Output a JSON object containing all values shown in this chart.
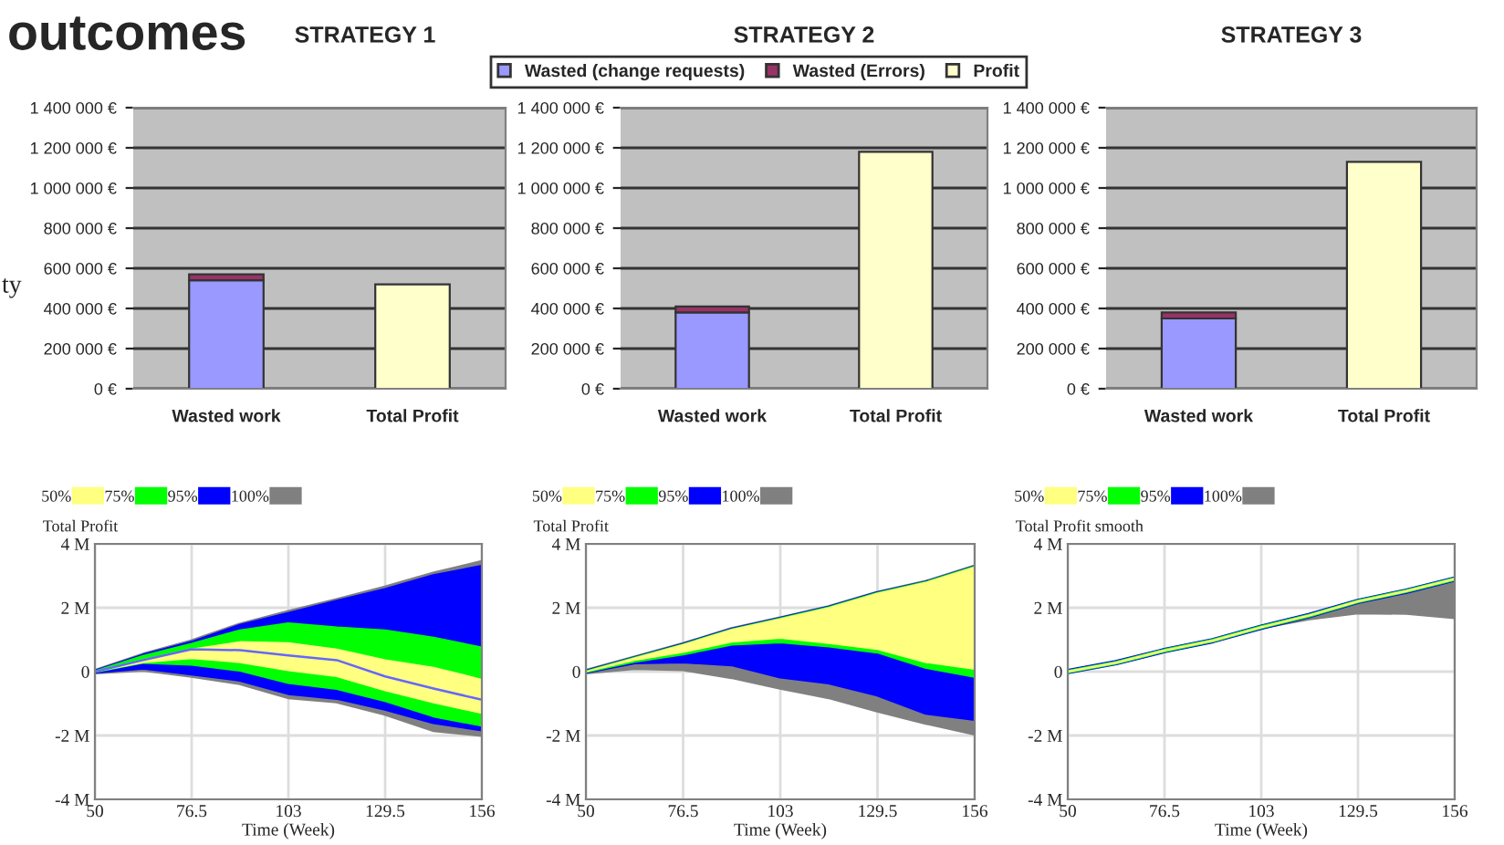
{
  "chart_data": [
    {
      "type": "bar",
      "stacked": true,
      "title": "STRATEGY 1",
      "categories": [
        "Wasted work",
        "Total Profit"
      ],
      "ylim": [
        0,
        1400000
      ],
      "yticks": [
        {
          "value": 0,
          "label": "0 €"
        },
        {
          "value": 200000,
          "label": "200 000 €"
        },
        {
          "value": 400000,
          "label": "400 000 €"
        },
        {
          "value": 600000,
          "label": "600 000 €"
        },
        {
          "value": 800000,
          "label": "800 000 €"
        },
        {
          "value": 1000000,
          "label": "1 000 000 €"
        },
        {
          "value": 1200000,
          "label": "1 200 000 €"
        },
        {
          "value": 1400000,
          "label": "1 400 000 €"
        }
      ],
      "grid": "y",
      "legend": "top right",
      "annotations": [
        "outcomes",
        "ty"
      ],
      "series": [
        {
          "name": "Wasted (change requests)",
          "color": "#9999ff",
          "values": [
            540000,
            null
          ]
        },
        {
          "name": "Wasted (Errors)",
          "color": "#993366",
          "values": [
            30000,
            null
          ]
        },
        {
          "name": "Profit",
          "color": "#ffffcc",
          "values": [
            null,
            520000
          ]
        }
      ]
    },
    {
      "type": "bar",
      "stacked": true,
      "title": "STRATEGY 2",
      "categories": [
        "Wasted work",
        "Total Profit"
      ],
      "ylim": [
        0,
        1400000
      ],
      "yticks": [
        {
          "value": 0,
          "label": "0 €"
        },
        {
          "value": 200000,
          "label": "200 000 €"
        },
        {
          "value": 400000,
          "label": "400 000 €"
        },
        {
          "value": 600000,
          "label": "600 000 €"
        },
        {
          "value": 800000,
          "label": "800 000 €"
        },
        {
          "value": 1000000,
          "label": "1 000 000 €"
        },
        {
          "value": 1200000,
          "label": "1 200 000 €"
        },
        {
          "value": 1400000,
          "label": "1 400 000 €"
        }
      ],
      "grid": "y",
      "series": [
        {
          "color": "#9999ff",
          "values": [
            380000,
            null
          ]
        },
        {
          "color": "#993366",
          "values": [
            30000,
            null
          ]
        },
        {
          "color": "#ffffcc",
          "values": [
            null,
            1180000
          ]
        }
      ]
    },
    {
      "type": "bar",
      "stacked": true,
      "title": "STRATEGY 3",
      "categories": [
        "Wasted work",
        "Total Profit"
      ],
      "ylim": [
        0,
        1400000
      ],
      "yticks": [
        {
          "value": 0,
          "label": "0 €"
        },
        {
          "value": 200000,
          "label": "200 000 €"
        },
        {
          "value": 400000,
          "label": "400 000 €"
        },
        {
          "value": 600000,
          "label": "600 000 €"
        },
        {
          "value": 800000,
          "label": "800 000 €"
        },
        {
          "value": 1000000,
          "label": "1 000 000 €"
        },
        {
          "value": 1200000,
          "label": "1 200 000 €"
        },
        {
          "value": 1400000,
          "label": "1 400 000 €"
        }
      ],
      "grid": "y",
      "series": [
        {
          "color": "#9999ff",
          "values": [
            350000,
            null
          ]
        },
        {
          "color": "#993366",
          "values": [
            30000,
            null
          ]
        },
        {
          "color": "#ffffcc",
          "values": [
            null,
            1130000
          ]
        }
      ]
    },
    {
      "type": "line",
      "ylabel": "Total Profit",
      "xlabel": "Time (Week)",
      "x": [
        50,
        63.25,
        76.5,
        89.75,
        103,
        116.25,
        129.5,
        142.75,
        156
      ],
      "xlim": [
        50,
        156
      ],
      "xticks": [
        50,
        76.5,
        103,
        129.5,
        156
      ],
      "ylim": [
        -4,
        4
      ],
      "yticks": [
        {
          "value": -4,
          "label": "-4 M"
        },
        {
          "value": -2,
          "label": "-2 M"
        },
        {
          "value": 0,
          "label": "0"
        },
        {
          "value": 2,
          "label": "2 M"
        },
        {
          "value": 4,
          "label": "4 M"
        }
      ],
      "grid": true,
      "legend": "top left",
      "series": [
        {
          "name": "50%",
          "color": "#ffff80",
          "values": [
            null,
            null,
            null,
            null,
            null,
            null,
            null,
            null,
            null
          ],
          "lower": [
            0,
            0.29,
            0.42,
            0.29,
            0.04,
            -0.15,
            -0.59,
            -0.97,
            -1.3
          ],
          "upper": [
            0,
            0.36,
            0.7,
            0.93,
            0.9,
            0.7,
            0.36,
            0.13,
            -0.25
          ]
        },
        {
          "name": "75%",
          "color": "#00ff00",
          "values": [
            null,
            null,
            null,
            null,
            null,
            null,
            null,
            null,
            null
          ],
          "lower": [
            0,
            0.29,
            0.23,
            0.04,
            -0.34,
            -0.53,
            -0.91,
            -1.39,
            -1.68
          ],
          "upper": [
            0,
            0.48,
            0.86,
            1.28,
            1.5,
            1.37,
            1.28,
            1.05,
            0.74
          ]
        },
        {
          "name": "95%",
          "color": "#0000ff",
          "values": [
            null,
            null,
            null,
            null,
            null,
            null,
            null,
            null,
            null
          ],
          "lower": [
            0,
            0.13,
            -0.06,
            -0.25,
            -0.67,
            -0.82,
            -1.16,
            -1.58,
            -1.81
          ],
          "upper": [
            0,
            0.5,
            0.9,
            1.43,
            1.8,
            2.19,
            2.55,
            2.99,
            3.28
          ]
        },
        {
          "name": "100%",
          "color": "#808080",
          "values": [
            null,
            null,
            null,
            null,
            null,
            null,
            null,
            null,
            null
          ],
          "lower": [
            0,
            0.08,
            -0.11,
            -0.34,
            -0.78,
            -0.91,
            -1.3,
            -1.81,
            -1.96
          ],
          "upper": [
            0,
            0.51,
            0.93,
            1.45,
            1.85,
            2.22,
            2.61,
            3.05,
            3.41
          ]
        },
        {
          "color": "#6666ff",
          "values": [
            0,
            0.36,
            0.7,
            0.67,
            0.51,
            0.36,
            -0.15,
            -0.53,
            -0.88
          ]
        }
      ]
    },
    {
      "type": "line",
      "ylabel": "Total Profit",
      "xlabel": "Time (Week)",
      "x": [
        50,
        63.25,
        76.5,
        89.75,
        103,
        116.25,
        129.5,
        142.75,
        156
      ],
      "xlim": [
        50,
        156
      ],
      "xticks": [
        50,
        76.5,
        103,
        129.5,
        156
      ],
      "ylim": [
        -4,
        4
      ],
      "yticks": [
        {
          "value": -4,
          "label": "-4 M"
        },
        {
          "value": -2,
          "label": "-2 M"
        },
        {
          "value": 0,
          "label": "0"
        },
        {
          "value": 2,
          "label": "2 M"
        },
        {
          "value": 4,
          "label": "4 M"
        }
      ],
      "grid": true,
      "legend": "top left",
      "series": [
        {
          "name": "50%",
          "color": "#ffff80",
          "values": [
            null,
            null,
            null,
            null,
            null,
            null,
            null,
            null,
            null
          ],
          "lower": [
            0,
            0.36,
            0.61,
            0.93,
            1.05,
            0.89,
            0.7,
            0.29,
            0.08
          ],
          "upper": [
            0,
            0.42,
            0.84,
            1.31,
            1.65,
            2.0,
            2.45,
            2.79,
            3.27
          ]
        },
        {
          "name": "75%",
          "color": "#00ff00",
          "values": [
            null,
            null,
            null,
            null,
            null,
            null,
            null,
            null,
            null
          ],
          "lower": [
            0,
            0.32,
            0.55,
            0.86,
            0.93,
            0.8,
            0.61,
            0.13,
            -0.15
          ],
          "upper": [
            0,
            0.42,
            0.84,
            1.31,
            1.65,
            2.0,
            2.45,
            2.79,
            3.27
          ]
        },
        {
          "name": "95%",
          "color": "#0000ff",
          "values": [
            null,
            null,
            null,
            null,
            null,
            null,
            null,
            null,
            null
          ],
          "lower": [
            0,
            0.29,
            0.32,
            0.23,
            -0.15,
            -0.34,
            -0.72,
            -1.29,
            -1.48
          ],
          "upper": [
            0,
            0.42,
            0.84,
            1.31,
            1.65,
            2.0,
            2.45,
            2.79,
            3.27
          ]
        },
        {
          "name": "100%",
          "color": "#808080",
          "values": [
            null,
            null,
            null,
            null,
            null,
            null,
            null,
            null,
            null
          ],
          "lower": [
            0,
            0.13,
            0.1,
            -0.15,
            -0.48,
            -0.78,
            -1.2,
            -1.58,
            -1.92
          ],
          "upper": [
            0,
            0.42,
            0.84,
            1.31,
            1.65,
            2.0,
            2.45,
            2.79,
            3.27
          ]
        }
      ]
    },
    {
      "type": "line",
      "ylabel": "Total Profit smooth",
      "xlabel": "Time (Week)",
      "x": [
        50,
        63.25,
        76.5,
        89.75,
        103,
        116.25,
        129.5,
        142.75,
        156
      ],
      "xlim": [
        50,
        156
      ],
      "xticks": [
        50,
        76.5,
        103,
        129.5,
        156
      ],
      "ylim": [
        -4,
        4
      ],
      "yticks": [
        {
          "value": -4,
          "label": "-4 M"
        },
        {
          "value": -2,
          "label": "-2 M"
        },
        {
          "value": 0,
          "label": "0"
        },
        {
          "value": 2,
          "label": "2 M"
        },
        {
          "value": 4,
          "label": "4 M"
        }
      ],
      "grid": true,
      "legend": "top left",
      "series": [
        {
          "name": "50%",
          "color": "#ffff80",
          "values": [
            0,
            0.28,
            0.66,
            0.97,
            1.39,
            1.76,
            2.2,
            2.52,
            2.9
          ]
        },
        {
          "name": "75%",
          "color": "#00ff00",
          "values": [
            0,
            0.28,
            0.66,
            0.97,
            1.39,
            1.76,
            2.2,
            2.52,
            2.9
          ]
        },
        {
          "name": "95%",
          "color": "#0000ff",
          "values": [
            0,
            0.28,
            0.66,
            0.97,
            1.39,
            1.76,
            2.2,
            2.52,
            2.9
          ]
        },
        {
          "name": "100%",
          "color": "#808080",
          "values": [
            null,
            null,
            null,
            null,
            null,
            null,
            null,
            null,
            null
          ],
          "lower": [
            0,
            0.28,
            0.66,
            0.97,
            1.35,
            1.63,
            1.82,
            1.8,
            1.67
          ],
          "upper": [
            0,
            0.28,
            0.66,
            0.97,
            1.39,
            1.76,
            2.2,
            2.52,
            2.9
          ]
        }
      ]
    }
  ]
}
